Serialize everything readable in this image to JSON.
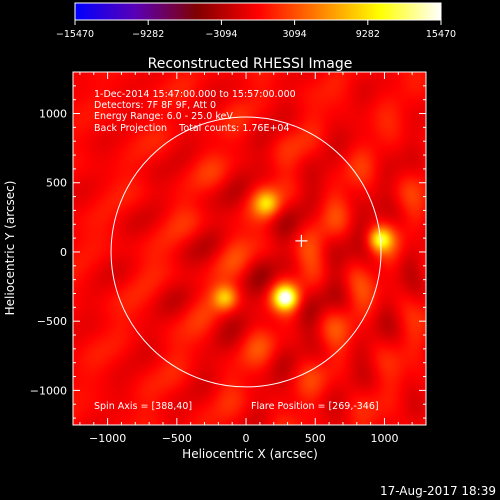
{
  "chart_data": {
    "type": "heatmap",
    "title": "Reconstructed RHESSI Image",
    "xlabel": "Heliocentric X (arcsec)",
    "ylabel": "Heliocentric Y (arcsec)",
    "xlim": [
      -1250,
      1300
    ],
    "ylim": [
      -1250,
      1300
    ],
    "xticks": [
      -1000,
      -500,
      0,
      500,
      1000
    ],
    "xtick_labels": [
      "−1000",
      "−500",
      "0",
      "500",
      "1000"
    ],
    "yticks": [
      -1000,
      -500,
      0,
      500,
      1000
    ],
    "ytick_labels": [
      "−1000",
      "−500",
      "0",
      "500",
      "1000"
    ],
    "colorbar": {
      "min": -15470,
      "max": 15470,
      "tick_values": [
        -15470,
        -9282,
        -3094,
        3094,
        9282,
        15470
      ],
      "tick_labels": [
        "−15470",
        "−9282",
        "−3094",
        "3094",
        "9282",
        "15470"
      ],
      "colors": [
        "#0000ff",
        "#5a00b4",
        "#800000",
        "#ff0000",
        "#ff8000",
        "#ffff00",
        "#ffffff"
      ]
    },
    "annotations": [
      "1-Dec-2014 15:47:00.000 to 15:57:00.000",
      "Detectors: 7F 8F 9F, Att 0",
      "Energy Range: 6.0 - 25.0 keV",
      "Back Projection    Total counts: 1.76E+04"
    ],
    "spin_axis_label": "Spin Axis = [388,40]",
    "flare_position_label": "Flare Position = [269,-346]",
    "solar_limb": {
      "center": [
        0,
        0
      ],
      "radius": 975
    },
    "cross_marker": [
      400,
      80
    ],
    "sources": [
      {
        "x": 285,
        "y": -330,
        "amp": 1.0,
        "sigma": 55
      },
      {
        "x": 970,
        "y": 90,
        "amp": 0.7,
        "sigma": 55
      },
      {
        "x": -150,
        "y": -330,
        "amp": 0.6,
        "sigma": 60
      },
      {
        "x": 150,
        "y": 350,
        "amp": 0.5,
        "sigma": 60
      }
    ]
  },
  "footer": {
    "timestamp": "17-Aug-2017 18:39"
  }
}
